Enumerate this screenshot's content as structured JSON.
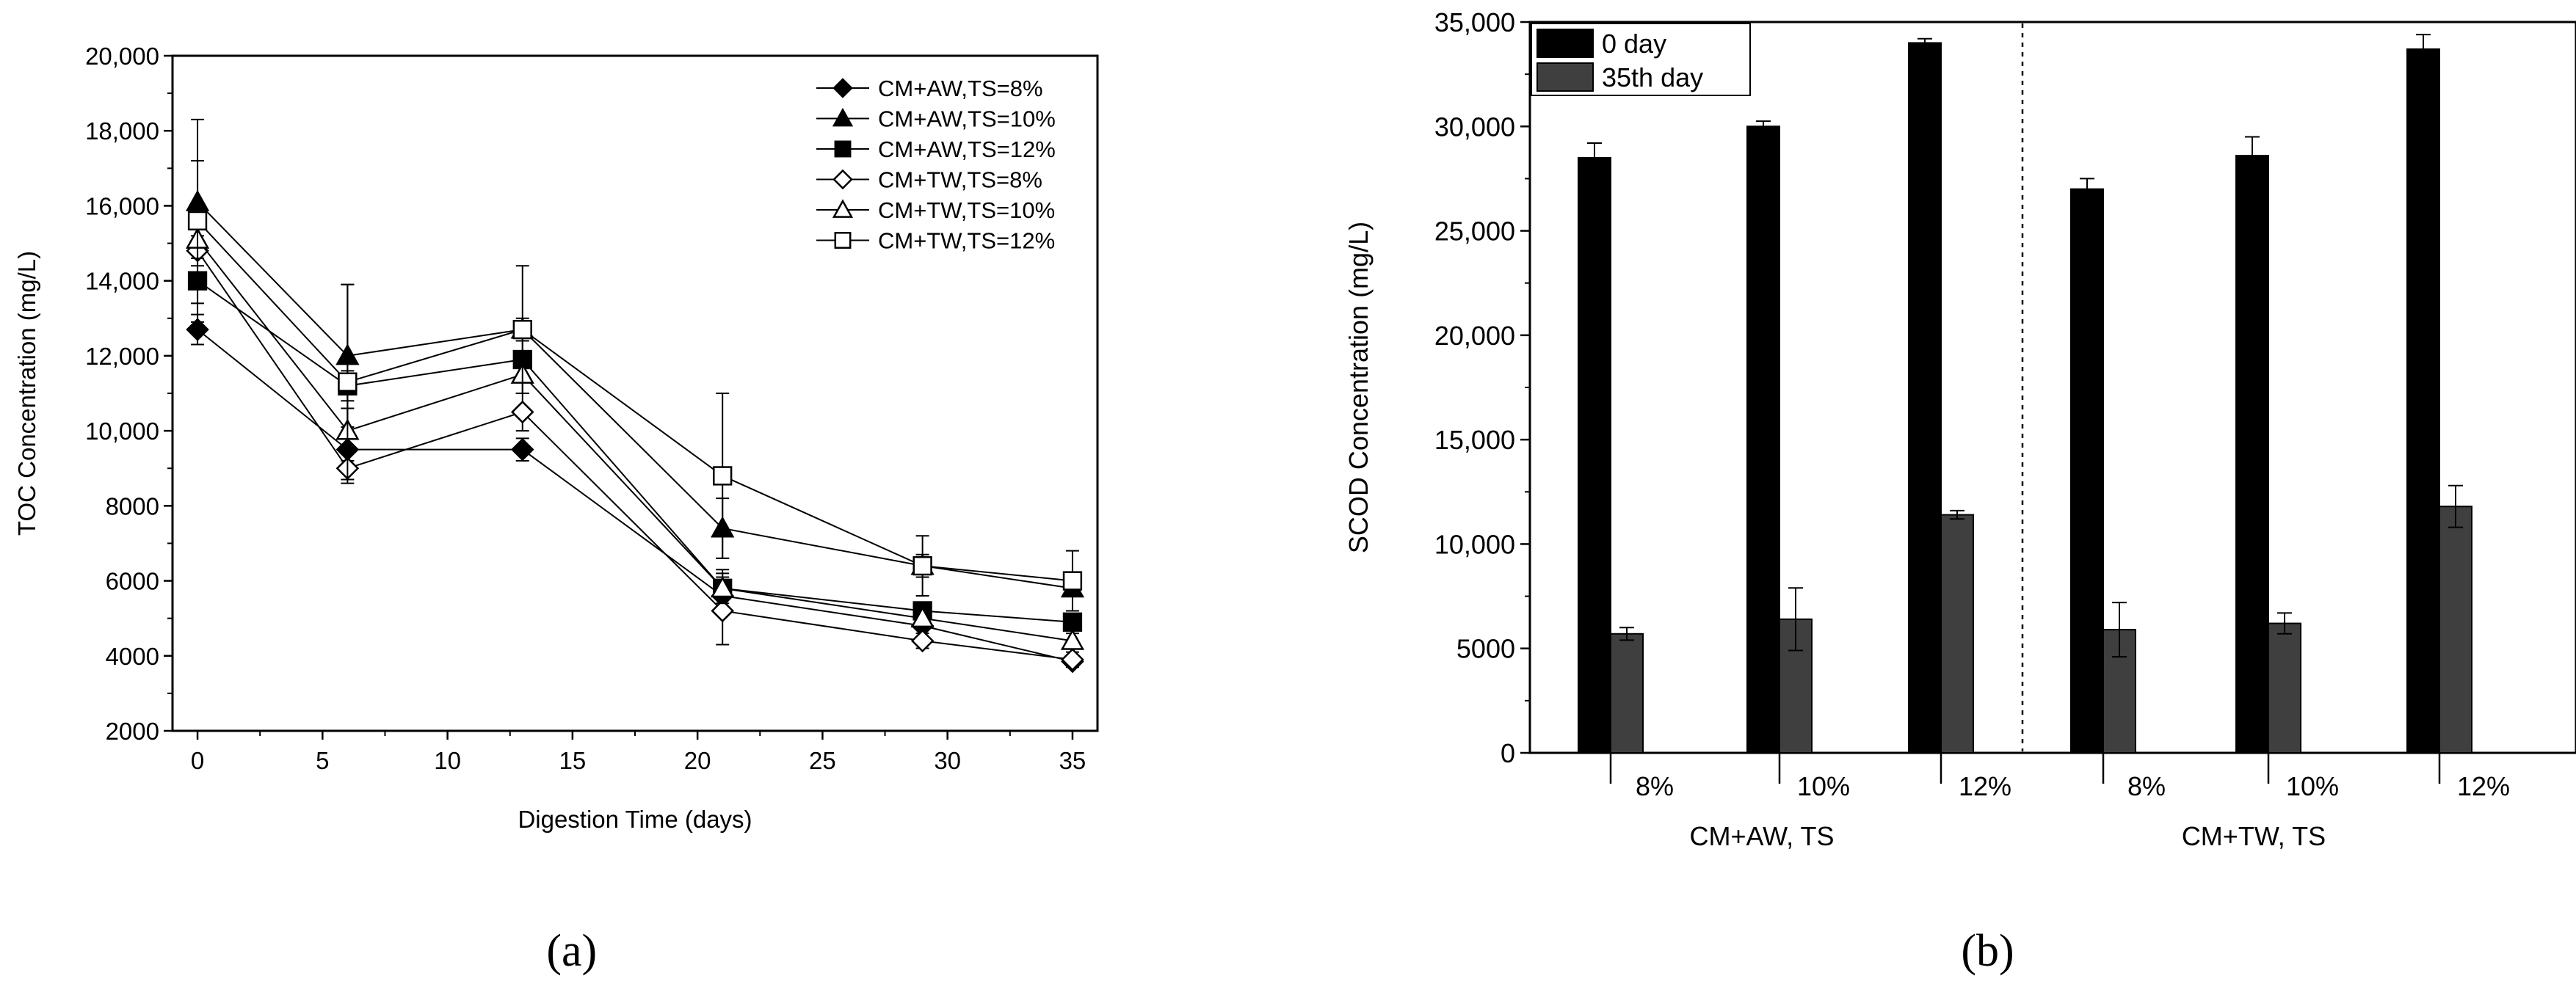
{
  "chart_data": [
    {
      "type": "line",
      "panel_label": "a",
      "xlabel": "Digestion Time (days)",
      "ylabel": "TOC Concentration (mg/L)",
      "xlim": [
        -1,
        36
      ],
      "ylim": [
        2000,
        20000
      ],
      "x_ticks": [
        0,
        5,
        10,
        15,
        20,
        25,
        30,
        35
      ],
      "x_tick_labels": [
        "0",
        "5",
        "10",
        "15",
        "20",
        "25",
        "30",
        "35"
      ],
      "y_ticks": [
        2000,
        4000,
        6000,
        8000,
        10000,
        12000,
        14000,
        16000,
        18000,
        20000
      ],
      "y_tick_labels": [
        "2000",
        "4000",
        "6000",
        "8000",
        "10,000",
        "12,000",
        "14,000",
        "16,000",
        "18,000",
        "20,000"
      ],
      "x": [
        0,
        6,
        13,
        21,
        29,
        35
      ],
      "legend_position": "top-right",
      "series": [
        {
          "name": "CM+AW,TS=8%",
          "marker": "diamond",
          "filled": true,
          "values": [
            12700,
            9500,
            9500,
            5600,
            4800,
            3850
          ],
          "errors": [
            400,
            300,
            300,
            300,
            300,
            150
          ]
        },
        {
          "name": "CM+AW,TS=10%",
          "marker": "triangle",
          "filled": true,
          "values": [
            16100,
            12000,
            12700,
            7400,
            6400,
            5800
          ],
          "errors": [
            1100,
            1900,
            300,
            800,
            300,
            200
          ]
        },
        {
          "name": "CM+AW,TS=12%",
          "marker": "square",
          "filled": true,
          "values": [
            14000,
            11200,
            11900,
            5800,
            5200,
            4900
          ],
          "errors": [
            600,
            400,
            500,
            500,
            200,
            200
          ]
        },
        {
          "name": "CM+TW,TS=8%",
          "marker": "diamond",
          "filled": false,
          "values": [
            14800,
            9000,
            10500,
            5200,
            4400,
            3900
          ],
          "errors": [
            400,
            400,
            500,
            900,
            200,
            200
          ]
        },
        {
          "name": "CM+TW,TS=10%",
          "marker": "triangle",
          "filled": false,
          "values": [
            15100,
            10000,
            11500,
            5800,
            5000,
            4400
          ],
          "errors": [
            500,
            600,
            500,
            400,
            300,
            200
          ]
        },
        {
          "name": "CM+TW,TS=12%",
          "marker": "square",
          "filled": false,
          "values": [
            15600,
            11300,
            12700,
            8800,
            6400,
            6000
          ],
          "errors": [
            2700,
            2600,
            1700,
            2200,
            800,
            800
          ]
        }
      ]
    },
    {
      "type": "bar",
      "panel_label": "b",
      "ylabel": "SCOD Concentration (mg/L)",
      "ylim": [
        0,
        35000
      ],
      "y_ticks": [
        0,
        5000,
        10000,
        15000,
        20000,
        25000,
        30000,
        35000
      ],
      "y_tick_labels": [
        "0",
        "5000",
        "10,000",
        "15,000",
        "20,000",
        "25,000",
        "30,000",
        "35,000"
      ],
      "categories": [
        "8%",
        "10%",
        "12%",
        "8%",
        "10%",
        "12%"
      ],
      "group_labels": [
        "CM+AW, TS",
        "CM+TW, TS"
      ],
      "legend_position": "top-left",
      "series": [
        {
          "name": "0 day",
          "color": "#000000",
          "values": [
            28500,
            30000,
            34000,
            27000,
            28600,
            33700
          ],
          "errors": [
            700,
            250,
            200,
            500,
            900,
            700
          ]
        },
        {
          "name": "35th day",
          "color": "#3f3f3f",
          "values": [
            5700,
            6400,
            11400,
            5900,
            6200,
            11800
          ],
          "errors": [
            300,
            1500,
            200,
            1300,
            500,
            1000
          ]
        }
      ]
    }
  ]
}
